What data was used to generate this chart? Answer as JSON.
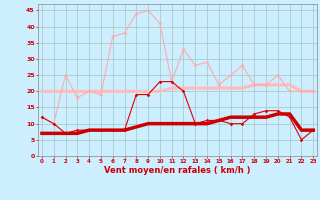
{
  "x": [
    0,
    1,
    2,
    3,
    4,
    5,
    6,
    7,
    8,
    9,
    10,
    11,
    12,
    13,
    14,
    15,
    16,
    17,
    18,
    19,
    20,
    21,
    22,
    23
  ],
  "wind_gust_line": [
    12,
    10,
    25,
    18,
    20,
    19,
    37,
    38,
    44,
    45,
    41,
    23,
    33,
    28,
    29,
    22,
    25,
    28,
    22,
    22,
    25,
    20,
    20,
    20
  ],
  "wind_avg_line": [
    12,
    10,
    7,
    8,
    8,
    8,
    8,
    8,
    19,
    19,
    23,
    23,
    20,
    10,
    11,
    11,
    10,
    10,
    13,
    14,
    14,
    12,
    5,
    8
  ],
  "wind_gust_smooth": [
    20,
    20,
    20,
    20,
    20,
    20,
    20,
    20,
    20,
    20,
    20,
    21,
    21,
    21,
    21,
    21,
    21,
    21,
    22,
    22,
    22,
    22,
    20,
    20
  ],
  "wind_avg_smooth": [
    7,
    7,
    7,
    7,
    8,
    8,
    8,
    8,
    9,
    10,
    10,
    10,
    10,
    10,
    10,
    11,
    12,
    12,
    12,
    12,
    13,
    13,
    8,
    8
  ],
  "bg_color": "#cceeff",
  "grid_color": "#aacccc",
  "color_gust_line": "#ffaaaa",
  "color_avg_line": "#dd0000",
  "color_gust_smooth": "#ffbbbb",
  "color_avg_smooth": "#cc0000",
  "xlabel": "Vent moyen/en rafales ( km/h )",
  "xlabel_color": "#cc0000",
  "tick_color": "#cc0000",
  "ylim": [
    0,
    47
  ],
  "yticks": [
    0,
    5,
    10,
    15,
    20,
    25,
    30,
    35,
    40,
    45
  ]
}
